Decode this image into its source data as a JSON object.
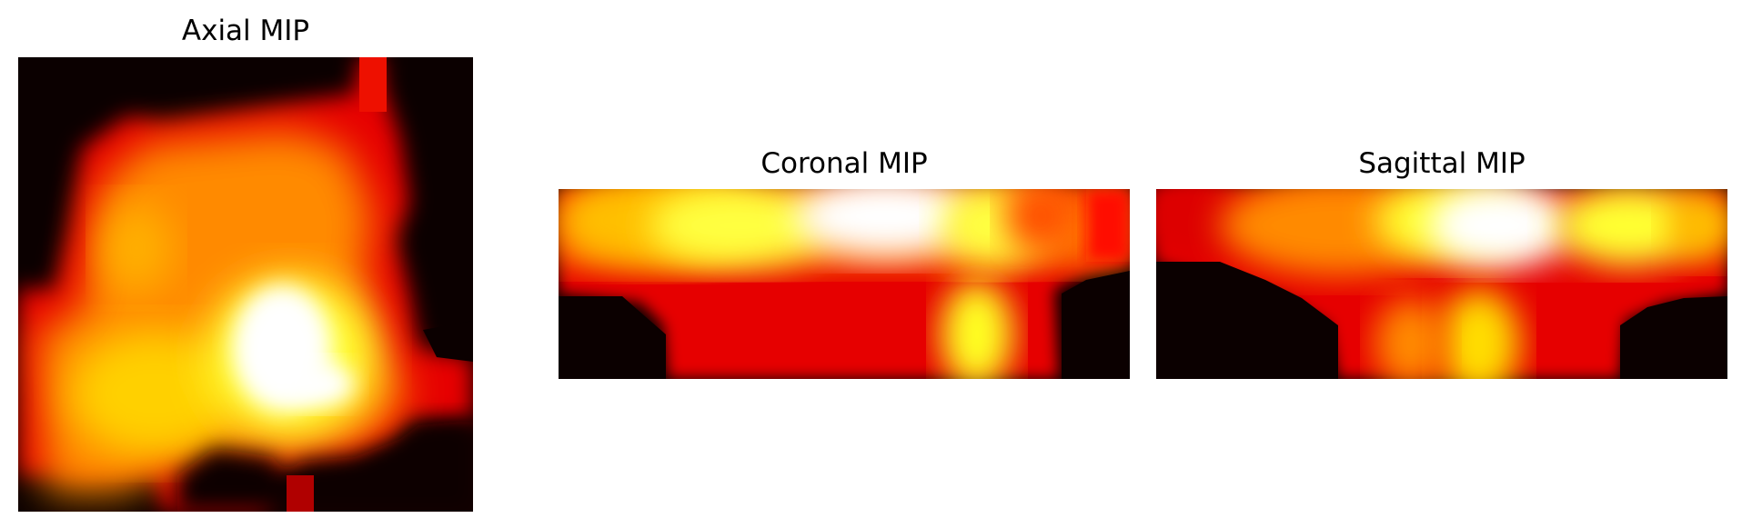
{
  "figure": {
    "panels": [
      {
        "id": "axial",
        "title": "Axial MIP"
      },
      {
        "id": "coronal",
        "title": "Coronal MIP"
      },
      {
        "id": "sagittal",
        "title": "Sagittal MIP"
      }
    ],
    "colormap": "hot",
    "background_color": "#0b0000"
  }
}
